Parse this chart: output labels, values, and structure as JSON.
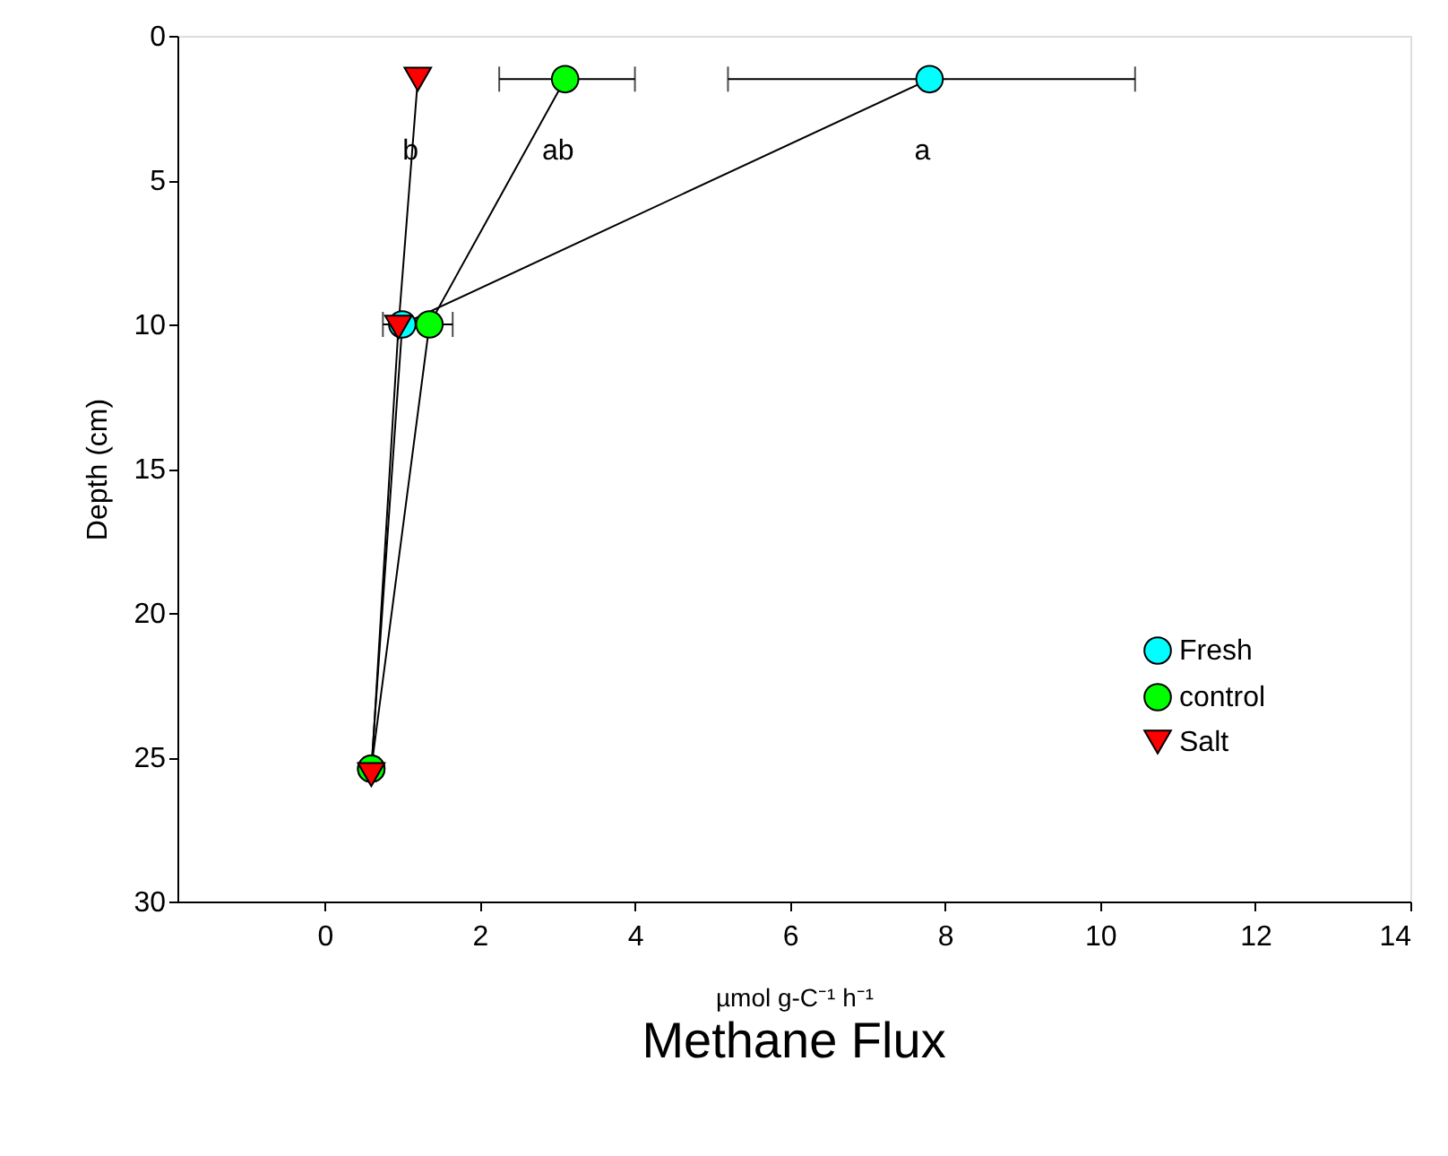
{
  "chart_data": {
    "type": "line",
    "title": "Methane Flux",
    "xlabel": "µmol g-C⁻¹ h⁻¹",
    "ylabel": "Depth (cm)",
    "xlim": [
      -1.9,
      14
    ],
    "xticks": [
      0,
      2,
      4,
      6,
      8,
      10,
      12,
      14
    ],
    "ylim": [
      30,
      0
    ],
    "yticks": [
      0,
      5,
      10,
      15,
      20,
      25,
      30
    ],
    "grid": false,
    "legend": "bottom right",
    "series": [
      {
        "name": "Fresh",
        "color": "#00ffff",
        "marker": "circle",
        "x": [
          7.8,
          1.0,
          0.6
        ],
        "values": [
          1.5,
          10,
          25.4
        ],
        "xerrors": [
          [
            5.2,
            10.45
          ],
          null,
          null
        ]
      },
      {
        "name": "control",
        "color": "#00ff00",
        "marker": "circle",
        "x": [
          3.1,
          1.35,
          0.6
        ],
        "values": [
          1.5,
          10,
          25.4
        ],
        "xerrors": [
          [
            2.25,
            4.0
          ],
          [
            0.75,
            1.65
          ],
          null
        ]
      },
      {
        "name": "Salt",
        "color": "#ff0000",
        "marker": "triangle",
        "x": [
          1.2,
          0.95,
          0.6
        ],
        "values": [
          1.5,
          10.1,
          25.6
        ],
        "xerrors": [
          null,
          null,
          null
        ]
      }
    ],
    "annotations": [
      "a",
      "ab",
      "b"
    ]
  }
}
